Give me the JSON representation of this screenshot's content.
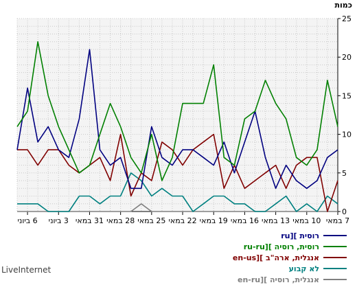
{
  "brand": "LiveInternet",
  "chart_data": {
    "type": "line",
    "ylabel": "כמות",
    "ylim": [
      0,
      25
    ],
    "yticks": [
      0,
      5,
      10,
      15,
      20,
      25
    ],
    "grid": "on",
    "legend_placement": "bottom-right",
    "x_tick_labels": [
      "7 במאי",
      "10 במאי",
      "13 במאי",
      "16 במאי",
      "19 במאי",
      "22 במאי",
      "25 במאי",
      "28 במאי",
      "31 במאי",
      "3 ביוני",
      "6 ביוני"
    ],
    "x_tick_indices": [
      0,
      3,
      6,
      9,
      12,
      15,
      18,
      21,
      24,
      27,
      30
    ],
    "series": [
      {
        "name": "רוסית ][ru",
        "color": "#000080",
        "values": [
          8,
          7,
          4,
          3,
          4,
          6,
          3,
          7,
          13,
          9,
          5,
          9,
          6,
          7,
          8,
          8,
          6,
          7,
          11,
          3,
          3,
          7,
          6,
          8,
          21,
          12,
          7,
          8,
          11,
          9,
          16,
          8
        ]
      },
      {
        "name": "רוסית, רוסיה ][ru-ru",
        "color": "#008000",
        "values": [
          11,
          17,
          8,
          6,
          7,
          12,
          14,
          17,
          13,
          12,
          6,
          7,
          19,
          14,
          14,
          14,
          7,
          4,
          10,
          5,
          7,
          11,
          14,
          10,
          6,
          5,
          8,
          11,
          15,
          22,
          13,
          11
        ]
      },
      {
        "name": "אנגלית, ארה\"ב ][en-us",
        "color": "#800000",
        "values": [
          4,
          0,
          7,
          7,
          6,
          3,
          6,
          5,
          4,
          3,
          6,
          3,
          10,
          9,
          8,
          6,
          8,
          9,
          4,
          5,
          2,
          10,
          4,
          7,
          6,
          5,
          6,
          8,
          8,
          6,
          8,
          8
        ]
      },
      {
        "name": "לא קבוע",
        "color": "#008080",
        "values": [
          1,
          2,
          0,
          1,
          0,
          2,
          1,
          0,
          0,
          1,
          1,
          2,
          2,
          1,
          0,
          2,
          2,
          3,
          2,
          4,
          5,
          2,
          2,
          1,
          2,
          2,
          0,
          0,
          0,
          1,
          1,
          1
        ]
      },
      {
        "name": "אנגלית, רוסיה ][en-ru",
        "color": "#808080",
        "values": [
          0,
          0,
          0,
          0,
          0,
          0,
          0,
          0,
          0,
          0,
          0,
          0,
          0,
          0,
          0,
          0,
          0,
          0,
          0,
          1,
          0,
          0,
          0,
          0,
          0,
          0,
          0,
          0,
          0,
          0,
          0,
          0
        ]
      }
    ]
  }
}
